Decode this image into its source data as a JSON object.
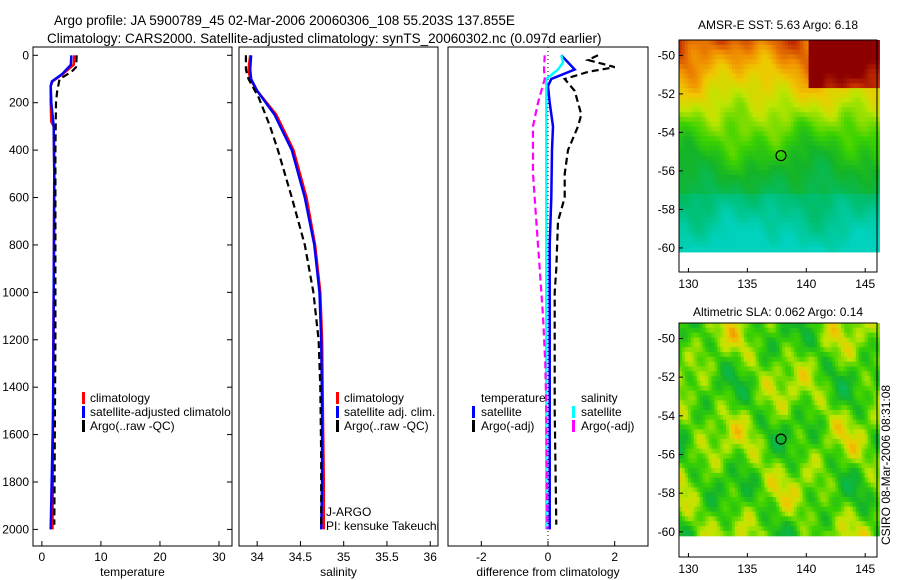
{
  "header": {
    "line1": "Argo profile: JA 5900789_45 02-Mar-2006 20060306_108 55.203S 137.855E",
    "line2": "Climatology: CARS2000. Satellite-adjusted climatology: synTS_20060302.nc (0.097d earlier)"
  },
  "colors": {
    "climatology": "#ff0000",
    "satellite": "#0000ff",
    "argo": "#000000",
    "sal_satellite": "#00ffff",
    "sal_argo": "#ff00ff"
  },
  "chart_data": [
    {
      "type": "line",
      "xlabel": "temperature",
      "ylabel": "",
      "xlim": [
        -1.5,
        32.2
      ],
      "ylim": [
        2070,
        -35
      ],
      "xticks": [
        0,
        10,
        20,
        30
      ],
      "yticks": [
        0,
        200,
        400,
        600,
        800,
        1000,
        1200,
        1400,
        1600,
        1800,
        2000
      ],
      "legend": [
        "climatology",
        "satellite-adjusted climatolo",
        "Argo(..raw -QC)"
      ],
      "series": [
        {
          "name": "climatology",
          "color": "#ff0000",
          "style": "solid",
          "depth": [
            0,
            40,
            80,
            110,
            130,
            200,
            280,
            300,
            500,
            1000,
            1500,
            2000
          ],
          "values": [
            5.5,
            5.4,
            3.5,
            1.8,
            1.5,
            1.5,
            1.6,
            2.0,
            2.1,
            2.0,
            1.9,
            1.8
          ]
        },
        {
          "name": "satellite-adjusted climatology",
          "color": "#0000ff",
          "style": "solid",
          "depth": [
            0,
            40,
            80,
            110,
            130,
            200,
            300,
            500,
            1000,
            1500,
            1880,
            2000
          ],
          "values": [
            5.0,
            4.9,
            3.4,
            1.7,
            1.5,
            1.6,
            2.0,
            2.1,
            2.0,
            1.9,
            1.6,
            1.5
          ]
        },
        {
          "name": "Argo(..raw -QC)",
          "color": "#000000",
          "style": "dashed",
          "depth": [
            0,
            50,
            70,
            100,
            150,
            200,
            400,
            800,
            1200,
            1600,
            1980
          ],
          "values": [
            5.9,
            5.8,
            5.0,
            3.0,
            2.6,
            2.4,
            2.3,
            2.3,
            2.3,
            2.2,
            2.1
          ]
        }
      ]
    },
    {
      "type": "line",
      "xlabel": "salinity",
      "xlim": [
        33.79,
        36.09
      ],
      "ylim": [
        2070,
        -35
      ],
      "xticks": [
        34,
        34.5,
        35,
        35.5,
        36
      ],
      "xticklabels": [
        "34",
        "34.5",
        "35",
        "35.5",
        "36"
      ],
      "legend": [
        "climatology",
        "satellite adj. clim.",
        "Argo(..raw -QC)"
      ],
      "annotations": [
        "J-ARGO",
        "PI: kensuke Takeuchi"
      ],
      "series": [
        {
          "name": "climatology",
          "color": "#ff0000",
          "style": "solid",
          "depth": [
            0,
            60,
            100,
            150,
            250,
            400,
            600,
            800,
            1000,
            1200,
            1500,
            1800,
            2000
          ],
          "values": [
            33.92,
            33.9,
            33.92,
            34.0,
            34.22,
            34.42,
            34.57,
            34.67,
            34.73,
            34.75,
            34.76,
            34.77,
            34.77
          ]
        },
        {
          "name": "satellite adj. clim.",
          "color": "#0000ff",
          "style": "solid",
          "depth": [
            0,
            60,
            100,
            150,
            250,
            400,
            600,
            800,
            1000,
            1200,
            1500,
            1800,
            2000
          ],
          "values": [
            33.93,
            33.92,
            33.93,
            34.0,
            34.2,
            34.4,
            34.55,
            34.66,
            34.72,
            34.74,
            34.75,
            34.75,
            34.74
          ]
        },
        {
          "name": "Argo(..raw -QC)",
          "color": "#000000",
          "style": "dashed",
          "depth": [
            0,
            60,
            100,
            180,
            300,
            400,
            600,
            800,
            1000,
            1200,
            1400,
            1700,
            1980
          ],
          "values": [
            33.87,
            33.87,
            33.9,
            34.02,
            34.15,
            34.24,
            34.4,
            34.55,
            34.65,
            34.71,
            34.73,
            34.74,
            34.74
          ]
        }
      ]
    },
    {
      "type": "line",
      "xlabel": "difference from climatology",
      "xlim": [
        -3,
        3
      ],
      "ylim": [
        2070,
        -35
      ],
      "xticks": [
        -2,
        0,
        2
      ],
      "legend_temperature": {
        "title": "temperature",
        "items": [
          "satellite",
          "Argo(-adj)"
        ]
      },
      "legend_salinity": {
        "title": "salinity",
        "items": [
          "satellite",
          "Argo(-adj)"
        ]
      },
      "series": [
        {
          "name": "temperature satellite",
          "color": "#0000ff",
          "style": "solid",
          "depth": [
            0,
            30,
            60,
            100,
            130,
            200,
            300,
            400,
            600,
            800,
            1000,
            1500,
            2000
          ],
          "values": [
            0.4,
            0.6,
            0.8,
            0.1,
            0.0,
            0.05,
            0.15,
            0.12,
            0.1,
            0.05,
            0.05,
            0.05,
            0.05
          ]
        },
        {
          "name": "temperature Argo(-adj)",
          "color": "#000000",
          "style": "dashed",
          "depth": [
            0,
            20,
            50,
            70,
            100,
            150,
            250,
            300,
            400,
            500,
            600,
            700,
            900,
            1000,
            1500,
            1980
          ],
          "values": [
            1.5,
            1.2,
            2.0,
            1.2,
            0.5,
            0.8,
            1.0,
            0.9,
            0.6,
            0.5,
            0.5,
            0.3,
            0.25,
            0.2,
            0.2,
            0.25
          ]
        },
        {
          "name": "salinity satellite",
          "color": "#00ffff",
          "style": "solid",
          "depth": [
            0,
            30,
            60,
            100,
            150,
            300,
            1000,
            2000
          ],
          "values": [
            0.4,
            0.45,
            0.3,
            -0.05,
            -0.05,
            -0.05,
            -0.05,
            -0.05
          ]
        },
        {
          "name": "salinity Argo(-adj)",
          "color": "#ff00ff",
          "style": "dashed",
          "depth": [
            0,
            60,
            100,
            200,
            300,
            500,
            700,
            900,
            1100,
            1300,
            1500,
            2000
          ],
          "values": [
            -0.1,
            -0.12,
            -0.1,
            -0.3,
            -0.45,
            -0.45,
            -0.35,
            -0.25,
            -0.15,
            -0.08,
            -0.05,
            -0.02
          ]
        }
      ]
    },
    {
      "type": "heatmap",
      "title": "AMSR-E SST: 5.63 Argo: 6.18",
      "xlim": [
        129.2,
        146
      ],
      "ylim": [
        -61.25,
        -49.2
      ],
      "xticks": [
        130,
        135,
        140,
        145
      ],
      "yticks": [
        -50,
        -52,
        -54,
        -56,
        -58,
        -60
      ],
      "data_extent_lat": [
        -60.2,
        -49.2
      ],
      "marker": {
        "lon": 137.855,
        "lat": -55.203
      }
    },
    {
      "type": "heatmap",
      "title": "Altimetric SLA: 0.062 Argo: 0.14",
      "xlim": [
        129.2,
        146
      ],
      "ylim": [
        -61.3,
        -49.2
      ],
      "xticks": [
        130,
        135,
        140,
        145
      ],
      "yticks": [
        -50,
        -52,
        -54,
        -56,
        -58,
        -60
      ],
      "data_extent_lat": [
        -60.2,
        -49.2
      ],
      "marker": {
        "lon": 137.855,
        "lat": -55.203
      }
    }
  ],
  "footer": {
    "stamp": "CSIRO 08-Mar-2006 08:31:08"
  }
}
